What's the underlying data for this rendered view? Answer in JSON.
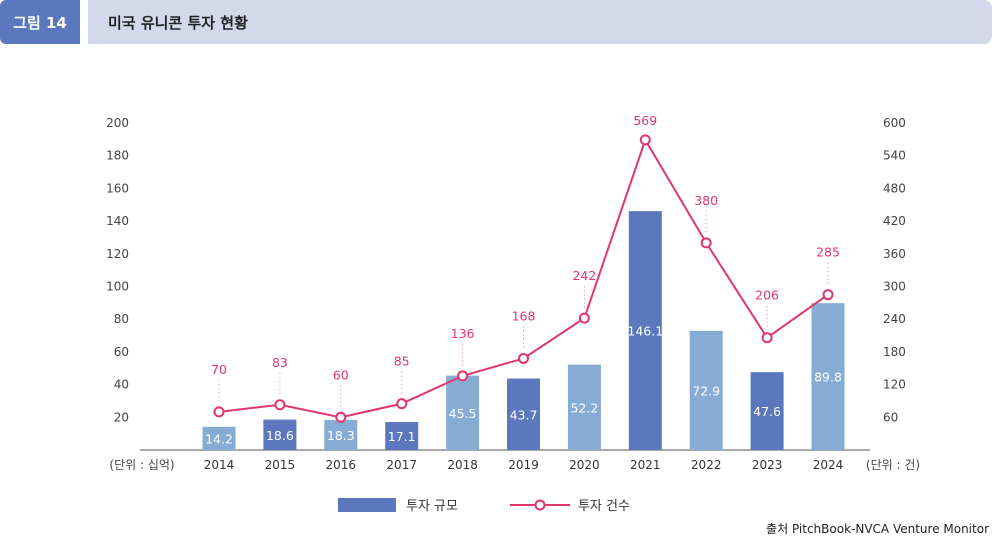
{
  "header": {
    "figure_label": "그림 14",
    "title": "미국 유니콘 투자 현황"
  },
  "chart_data": {
    "type": "bar",
    "categories": [
      "2014",
      "2015",
      "2016",
      "2017",
      "2018",
      "2019",
      "2020",
      "2021",
      "2022",
      "2023",
      "2024"
    ],
    "series": [
      {
        "name": "투자 규모",
        "type": "bar",
        "axis": "left",
        "values": [
          14.2,
          18.6,
          18.3,
          17.1,
          45.5,
          43.7,
          52.2,
          146.1,
          72.9,
          47.6,
          89.8
        ],
        "colors": [
          "#86acd6",
          "#5b78be",
          "#86acd6",
          "#5b78be",
          "#86acd6",
          "#5b78be",
          "#86acd6",
          "#5b78be",
          "#86acd6",
          "#5b78be",
          "#86acd6"
        ]
      },
      {
        "name": "투자 건수",
        "type": "line",
        "axis": "right",
        "values": [
          70,
          83,
          60,
          85,
          136,
          168,
          242,
          569,
          380,
          206,
          285
        ],
        "color": "#e0366a"
      }
    ],
    "left_axis": {
      "unit_label": "(단위 : 십억)",
      "ticks": [
        20,
        40,
        60,
        80,
        100,
        120,
        140,
        160,
        180,
        200
      ],
      "range": [
        0,
        200
      ]
    },
    "right_axis": {
      "unit_label": "(단위 : 건)",
      "ticks": [
        60,
        120,
        180,
        240,
        300,
        360,
        420,
        480,
        540,
        600
      ],
      "range": [
        0,
        600
      ]
    },
    "grid": false,
    "legend_position": "bottom-center"
  },
  "legend": {
    "bar_label": "투자 규모",
    "line_label": "투자 건수"
  },
  "source": "출처 PitchBook-NVCA Venture Monitor"
}
